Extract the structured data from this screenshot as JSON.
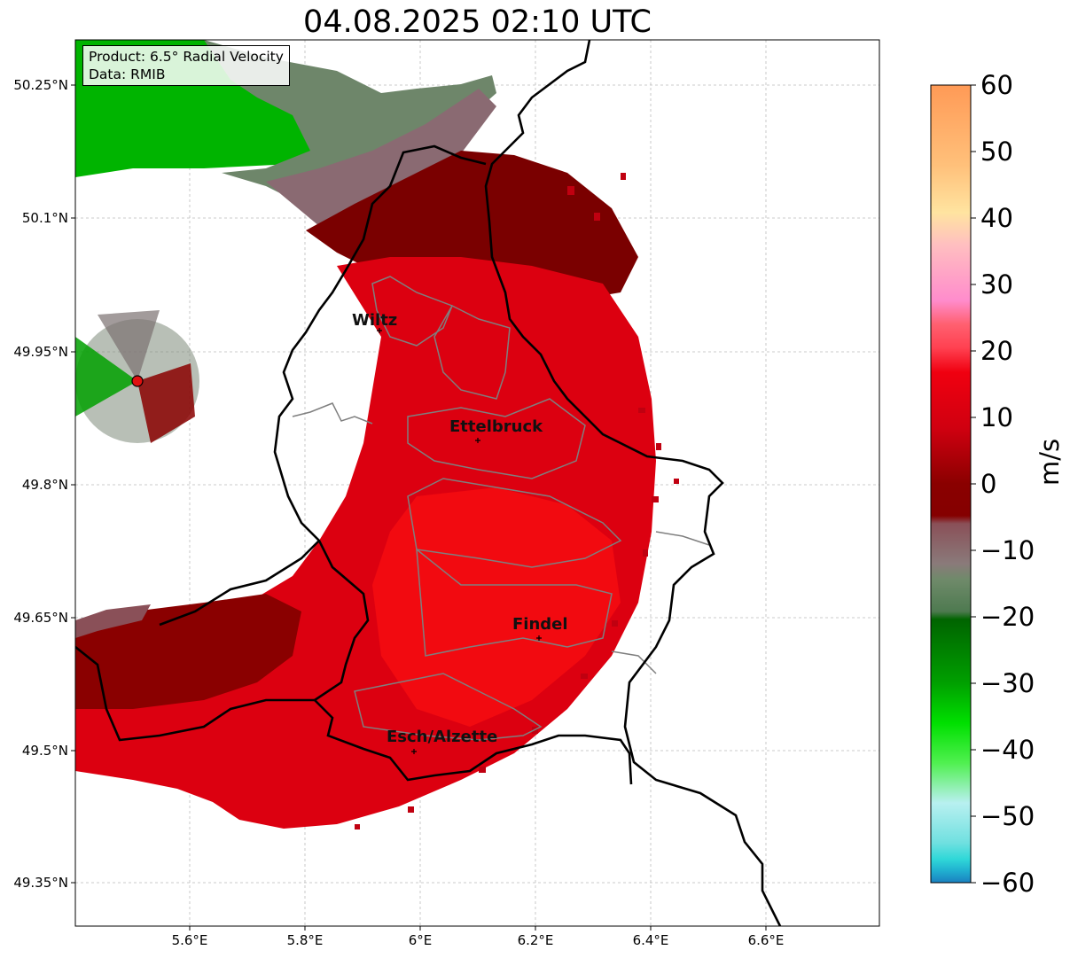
{
  "title": "04.08.2025 02:10 UTC",
  "product_box": {
    "product": "Product: 6.5° Radial Velocity",
    "data": "Data: RMIB"
  },
  "lat_labels": [
    "50.25°N",
    "50.1°N",
    "49.95°N",
    "49.8°N",
    "49.65°N",
    "49.5°N",
    "49.35°N"
  ],
  "lon_labels": [
    "5.6°E",
    "5.8°E",
    "6°E",
    "6.2°E",
    "6.4°E",
    "6.6°E"
  ],
  "colorbar": {
    "unit": "m/s",
    "ticks": [
      "60",
      "50",
      "40",
      "30",
      "20",
      "10",
      "0",
      "−10",
      "−20",
      "−30",
      "−40",
      "−50",
      "−60"
    ]
  },
  "cities": [
    {
      "name": "Wiltz"
    },
    {
      "name": "Ettelbruck"
    },
    {
      "name": "Findel"
    },
    {
      "name": "Esch/Alzette"
    }
  ],
  "colors": {
    "inbound_strong": "#00c400",
    "near_zero": "#6f8a6a",
    "outbound": "#e00010",
    "outbound_dark": "#7a0000",
    "border": "#000000",
    "district": "#808080"
  }
}
